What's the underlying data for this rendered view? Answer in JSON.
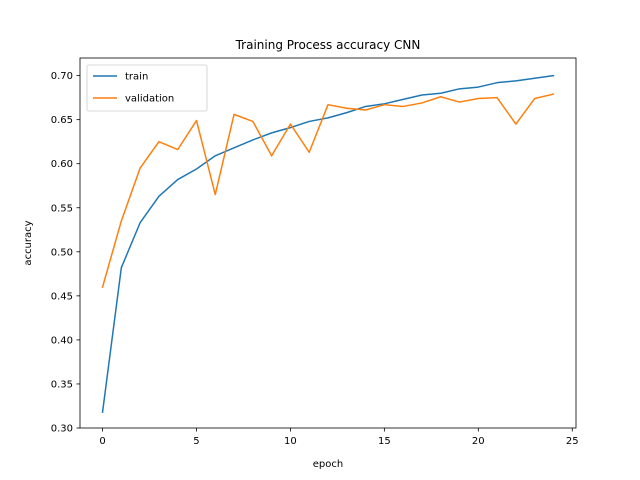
{
  "chart_data": {
    "type": "line",
    "title": "Training Process accuracy CNN",
    "xlabel": "epoch",
    "ylabel": "accuracy",
    "xlim": [
      -1.2,
      25.2
    ],
    "ylim": [
      0.3,
      0.72
    ],
    "xticks": [
      0,
      5,
      10,
      15,
      20,
      25
    ],
    "yticks": [
      0.3,
      0.35,
      0.4,
      0.45,
      0.5,
      0.55,
      0.6,
      0.65,
      0.7
    ],
    "grid": false,
    "legend": "top-left",
    "x": [
      0,
      1,
      2,
      3,
      4,
      5,
      6,
      7,
      8,
      9,
      10,
      11,
      12,
      13,
      14,
      15,
      16,
      17,
      18,
      19,
      20,
      21,
      22,
      23,
      24
    ],
    "series": [
      {
        "name": "train",
        "color": "#1f77b4",
        "values": [
          0.318,
          0.482,
          0.533,
          0.563,
          0.582,
          0.594,
          0.609,
          0.618,
          0.627,
          0.635,
          0.641,
          0.648,
          0.652,
          0.658,
          0.665,
          0.668,
          0.673,
          0.678,
          0.68,
          0.685,
          0.687,
          0.692,
          0.694,
          0.697,
          0.7
        ]
      },
      {
        "name": "validation",
        "color": "#ff7f0e",
        "values": [
          0.46,
          0.535,
          0.595,
          0.625,
          0.616,
          0.649,
          0.565,
          0.656,
          0.648,
          0.609,
          0.645,
          0.613,
          0.667,
          0.663,
          0.661,
          0.667,
          0.665,
          0.669,
          0.676,
          0.67,
          0.674,
          0.675,
          0.645,
          0.674,
          0.679
        ]
      }
    ]
  }
}
